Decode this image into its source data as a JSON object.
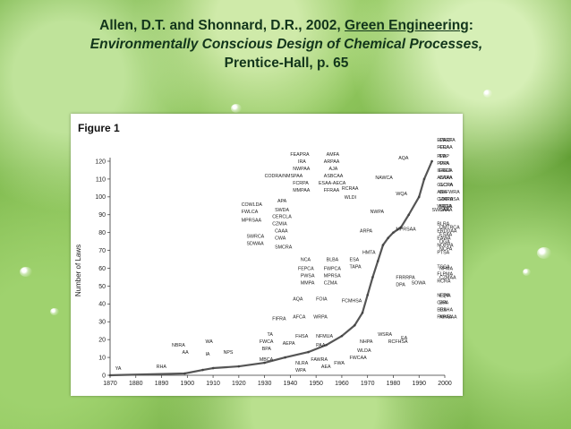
{
  "citation": {
    "line1_prefix": "Allen, D.T. and Shonnard, D.R., 2002, ",
    "line1_book": "Green Engineering",
    "line1_colon": ":",
    "line2": "Environmentally Conscious Design of Chemical Processes,",
    "line3": "Prentice-Hall, p. 65"
  },
  "figure_label": "Figure 1",
  "chart_data": {
    "type": "line",
    "title": "",
    "xlabel": "",
    "ylabel": "Number of Laws",
    "xlim": [
      1870,
      2000
    ],
    "ylim": [
      0,
      120
    ],
    "xticks": [
      1870,
      1880,
      1890,
      1900,
      1910,
      1920,
      1930,
      1940,
      1950,
      1960,
      1970,
      1980,
      1990,
      2000
    ],
    "yticks": [
      0,
      10,
      20,
      30,
      40,
      50,
      60,
      70,
      80,
      90,
      100,
      110,
      120
    ],
    "grid": false,
    "x": [
      1870,
      1899,
      1906,
      1910,
      1920,
      1930,
      1938,
      1947,
      1954,
      1960,
      1965,
      1968,
      1970,
      1972,
      1974,
      1976,
      1978,
      1980,
      1983,
      1986,
      1990,
      1992,
      1995
    ],
    "series": [
      {
        "values": [
          0,
          1,
          3,
          4,
          5,
          7,
          10,
          13,
          17,
          22,
          28,
          35,
          45,
          55,
          64,
          73,
          77,
          80,
          83,
          90,
          100,
          110,
          120
        ]
      }
    ],
    "annotations": [
      {
        "text": "YA",
        "x": 1872,
        "y": 3
      },
      {
        "text": "RHA",
        "x": 1888,
        "y": 4
      },
      {
        "text": "NBRA",
        "x": 1894,
        "y": 16
      },
      {
        "text": "AA",
        "x": 1898,
        "y": 12
      },
      {
        "text": "WA",
        "x": 1907,
        "y": 18
      },
      {
        "text": "IA",
        "x": 1907,
        "y": 11
      },
      {
        "text": "NPS",
        "x": 1914,
        "y": 12
      },
      {
        "text": "TA",
        "x": 1931,
        "y": 22
      },
      {
        "text": "FWCA",
        "x": 1928,
        "y": 18
      },
      {
        "text": "BPA",
        "x": 1929,
        "y": 14
      },
      {
        "text": "MBCA",
        "x": 1928,
        "y": 8
      },
      {
        "text": "AEPA",
        "x": 1937,
        "y": 17
      },
      {
        "text": "FIFRA",
        "x": 1933,
        "y": 31
      },
      {
        "text": "NLRA",
        "x": 1942,
        "y": 6
      },
      {
        "text": "WPA",
        "x": 1942,
        "y": 2
      },
      {
        "text": "FHSA",
        "x": 1942,
        "y": 21
      },
      {
        "text": "NFMUA",
        "x": 1950,
        "y": 21
      },
      {
        "text": "PAA",
        "x": 1950,
        "y": 16
      },
      {
        "text": "FAWRA",
        "x": 1948,
        "y": 8
      },
      {
        "text": "AEA",
        "x": 1952,
        "y": 4
      },
      {
        "text": "FWA",
        "x": 1957,
        "y": 6
      },
      {
        "text": "AFCA",
        "x": 1941,
        "y": 32
      },
      {
        "text": "WRPA",
        "x": 1949,
        "y": 32
      },
      {
        "text": "AQA",
        "x": 1941,
        "y": 42
      },
      {
        "text": "FOIA",
        "x": 1950,
        "y": 42
      },
      {
        "text": "FCMHSA",
        "x": 1960,
        "y": 41
      },
      {
        "text": "NHPA",
        "x": 1967,
        "y": 18
      },
      {
        "text": "WLDA",
        "x": 1966,
        "y": 13
      },
      {
        "text": "FWCAA",
        "x": 1963,
        "y": 9
      },
      {
        "text": "WSRA",
        "x": 1974,
        "y": 22
      },
      {
        "text": "RCFHSA",
        "x": 1978,
        "y": 18
      },
      {
        "text": "EA",
        "x": 1983,
        "y": 20
      },
      {
        "text": "NCA",
        "x": 1944,
        "y": 64
      },
      {
        "text": "FEPCA",
        "x": 1943,
        "y": 59
      },
      {
        "text": "PWSA",
        "x": 1944,
        "y": 55
      },
      {
        "text": "MMPA",
        "x": 1944,
        "y": 51
      },
      {
        "text": "BLBA",
        "x": 1954,
        "y": 64
      },
      {
        "text": "FWPCA",
        "x": 1953,
        "y": 59
      },
      {
        "text": "MPRSA",
        "x": 1953,
        "y": 55
      },
      {
        "text": "CZMA",
        "x": 1953,
        "y": 51
      },
      {
        "text": "ESA",
        "x": 1963,
        "y": 64
      },
      {
        "text": "TAPA",
        "x": 1963,
        "y": 60
      },
      {
        "text": "HMTA",
        "x": 1968,
        "y": 68
      },
      {
        "text": "FRRRPA",
        "x": 1981,
        "y": 54
      },
      {
        "text": "DPA",
        "x": 1981,
        "y": 50
      },
      {
        "text": "SOWA",
        "x": 1987,
        "y": 51
      },
      {
        "text": "SWRCA",
        "x": 1923,
        "y": 77
      },
      {
        "text": "SDWAA",
        "x": 1923,
        "y": 73
      },
      {
        "text": "CAAA",
        "x": 1934,
        "y": 80
      },
      {
        "text": "CWA",
        "x": 1934,
        "y": 76
      },
      {
        "text": "SMCRA",
        "x": 1934,
        "y": 71
      },
      {
        "text": "ARPA",
        "x": 1967,
        "y": 80
      },
      {
        "text": "COWLDA",
        "x": 1921,
        "y": 95
      },
      {
        "text": "FWLCA",
        "x": 1921,
        "y": 91
      },
      {
        "text": "MPRSAA",
        "x": 1921,
        "y": 86
      },
      {
        "text": "APA",
        "x": 1935,
        "y": 97
      },
      {
        "text": "SWDA",
        "x": 1934,
        "y": 92
      },
      {
        "text": "CERCLA",
        "x": 1933,
        "y": 88
      },
      {
        "text": "CZMIA",
        "x": 1933,
        "y": 84
      },
      {
        "text": "RCRAA",
        "x": 1960,
        "y": 104
      },
      {
        "text": "WLDI",
        "x": 1961,
        "y": 99
      },
      {
        "text": "NWPA",
        "x": 1971,
        "y": 91
      },
      {
        "text": "MPRSAA",
        "x": 1981,
        "y": 81
      },
      {
        "text": "WQA",
        "x": 1981,
        "y": 101
      },
      {
        "text": "SWDAA",
        "x": 1995,
        "y": 92
      },
      {
        "text": "SARA",
        "x": 2003,
        "y": 92
      },
      {
        "text": "NAWCA",
        "x": 1973,
        "y": 110
      },
      {
        "text": "AQA",
        "x": 1982,
        "y": 121
      },
      {
        "text": "FEAPRA",
        "x": 1940,
        "y": 123
      },
      {
        "text": "IRA",
        "x": 1943,
        "y": 119
      },
      {
        "text": "NWPAA",
        "x": 1941,
        "y": 115
      },
      {
        "text": "CODRA/NMSPAA",
        "x": 1930,
        "y": 111
      },
      {
        "text": "FCRPA",
        "x": 1941,
        "y": 107
      },
      {
        "text": "MMPAA",
        "x": 1941,
        "y": 103
      },
      {
        "text": "AMFA",
        "x": 1954,
        "y": 123
      },
      {
        "text": "ARPAA",
        "x": 1953,
        "y": 119
      },
      {
        "text": "AJA",
        "x": 1955,
        "y": 115
      },
      {
        "text": "ASBCAA",
        "x": 1953,
        "y": 111
      },
      {
        "text": "ESAA-AECA",
        "x": 1951,
        "y": 107
      },
      {
        "text": "FFRAA",
        "x": 1953,
        "y": 103
      },
      {
        "text": "EPACT",
        "x": 1997,
        "y": 131
      },
      {
        "text": "CERFA",
        "x": 2006,
        "y": 131
      },
      {
        "text": "FFCA",
        "x": 1997,
        "y": 127
      },
      {
        "text": "CRAA",
        "x": 2006,
        "y": 127
      },
      {
        "text": "PPA",
        "x": 1997,
        "y": 122
      },
      {
        "text": "PPVA",
        "x": 1997,
        "y": 118
      },
      {
        "text": "IEREA",
        "x": 1997,
        "y": 114
      },
      {
        "text": "ANTPA",
        "x": 1997,
        "y": 110
      },
      {
        "text": "GLCPA",
        "x": 1997,
        "y": 106
      },
      {
        "text": "ABA",
        "x": 1997,
        "y": 102
      },
      {
        "text": "CZARA",
        "x": 1997,
        "y": 98
      },
      {
        "text": "WRDA",
        "x": 1997,
        "y": 94
      },
      {
        "text": "EDP",
        "x": 2008,
        "y": 122
      },
      {
        "text": "OPA",
        "x": 2008,
        "y": 118
      },
      {
        "text": "RECA",
        "x": 2008,
        "y": 114
      },
      {
        "text": "CAAA",
        "x": 2008,
        "y": 110
      },
      {
        "text": "GCRA",
        "x": 2008,
        "y": 106
      },
      {
        "text": "GLFWRA",
        "x": 2008,
        "y": 102
      },
      {
        "text": "HMTUSA",
        "x": 2008,
        "y": 98
      },
      {
        "text": "NEEA",
        "x": 2008,
        "y": 94
      },
      {
        "text": "BLRA",
        "x": 1997,
        "y": 84
      },
      {
        "text": "ERDDAA",
        "x": 1997,
        "y": 80
      },
      {
        "text": "EAWA",
        "x": 1997,
        "y": 76
      },
      {
        "text": "NOPPA",
        "x": 1997,
        "y": 72
      },
      {
        "text": "PTSA",
        "x": 1997,
        "y": 68
      },
      {
        "text": "UMTRCA",
        "x": 2008,
        "y": 82
      },
      {
        "text": "ESAA",
        "x": 2008,
        "y": 78
      },
      {
        "text": "OGA",
        "x": 2008,
        "y": 74
      },
      {
        "text": "NCPA",
        "x": 2008,
        "y": 70
      },
      {
        "text": "TSCA",
        "x": 1997,
        "y": 60
      },
      {
        "text": "FLPMA",
        "x": 1997,
        "y": 56
      },
      {
        "text": "RCRA",
        "x": 1997,
        "y": 52
      },
      {
        "text": "NFMA",
        "x": 2008,
        "y": 59
      },
      {
        "text": "CZMAA",
        "x": 2008,
        "y": 54
      },
      {
        "text": "NEPA",
        "x": 1997,
        "y": 44
      },
      {
        "text": "CAA",
        "x": 1997,
        "y": 40
      },
      {
        "text": "EEA",
        "x": 1997,
        "y": 36
      },
      {
        "text": "FAWRAA",
        "x": 1997,
        "y": 32
      },
      {
        "text": "EQIA",
        "x": 2008,
        "y": 44
      },
      {
        "text": "EPA",
        "x": 2008,
        "y": 40
      },
      {
        "text": "OSHA",
        "x": 2008,
        "y": 36
      },
      {
        "text": "NPAA",
        "x": 2008,
        "y": 32
      }
    ]
  }
}
